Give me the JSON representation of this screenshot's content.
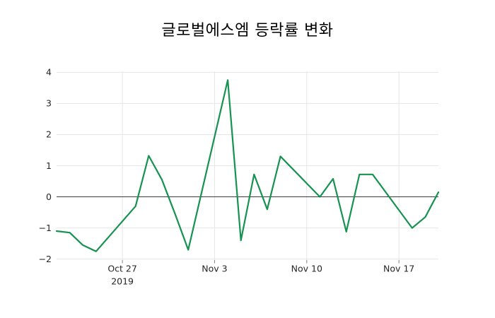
{
  "chart_data": {
    "type": "line",
    "title": "글로벌에스엠 등락률 변화",
    "xlabel": "",
    "ylabel": "",
    "legend": false,
    "grid": true,
    "zero_line": true,
    "xlim": [
      "2019-10-22",
      "2019-11-20"
    ],
    "ylim": [
      -2.03,
      4.03
    ],
    "yticks": [
      -2,
      -1,
      0,
      1,
      2,
      3,
      4
    ],
    "ytick_labels": [
      "−2",
      "−1",
      "0",
      "1",
      "2",
      "3",
      "4"
    ],
    "xticks": [
      {
        "date": "2019-10-27",
        "label": "Oct 27",
        "sublabel": "2019"
      },
      {
        "date": "2019-11-03",
        "label": "Nov 3",
        "sublabel": ""
      },
      {
        "date": "2019-11-10",
        "label": "Nov 10",
        "sublabel": ""
      },
      {
        "date": "2019-11-17",
        "label": "Nov 17",
        "sublabel": ""
      }
    ],
    "series": [
      {
        "name": "등락률",
        "x": [
          "2019-10-22",
          "2019-10-23",
          "2019-10-24",
          "2019-10-25",
          "2019-10-28",
          "2019-10-29",
          "2019-10-30",
          "2019-10-31",
          "2019-11-01",
          "2019-11-04",
          "2019-11-05",
          "2019-11-06",
          "2019-11-07",
          "2019-11-08",
          "2019-11-11",
          "2019-11-12",
          "2019-11-13",
          "2019-11-14",
          "2019-11-15",
          "2019-11-18",
          "2019-11-19",
          "2019-11-20"
        ],
        "values": [
          -1.1,
          -1.15,
          -1.55,
          -1.75,
          -0.3,
          1.32,
          0.55,
          -0.55,
          -1.7,
          3.75,
          -1.4,
          0.72,
          -0.4,
          1.3,
          0.0,
          0.58,
          -1.12,
          0.72,
          0.72,
          -1.0,
          -0.65,
          0.15
        ]
      }
    ],
    "colors": {
      "line": "#169251",
      "grid": "#e6e6e6",
      "zero_line": "#3a3a3a",
      "tick_mark": "#808080",
      "tick_text": "#262626",
      "title_text": "#000000",
      "background": "#ffffff"
    }
  }
}
